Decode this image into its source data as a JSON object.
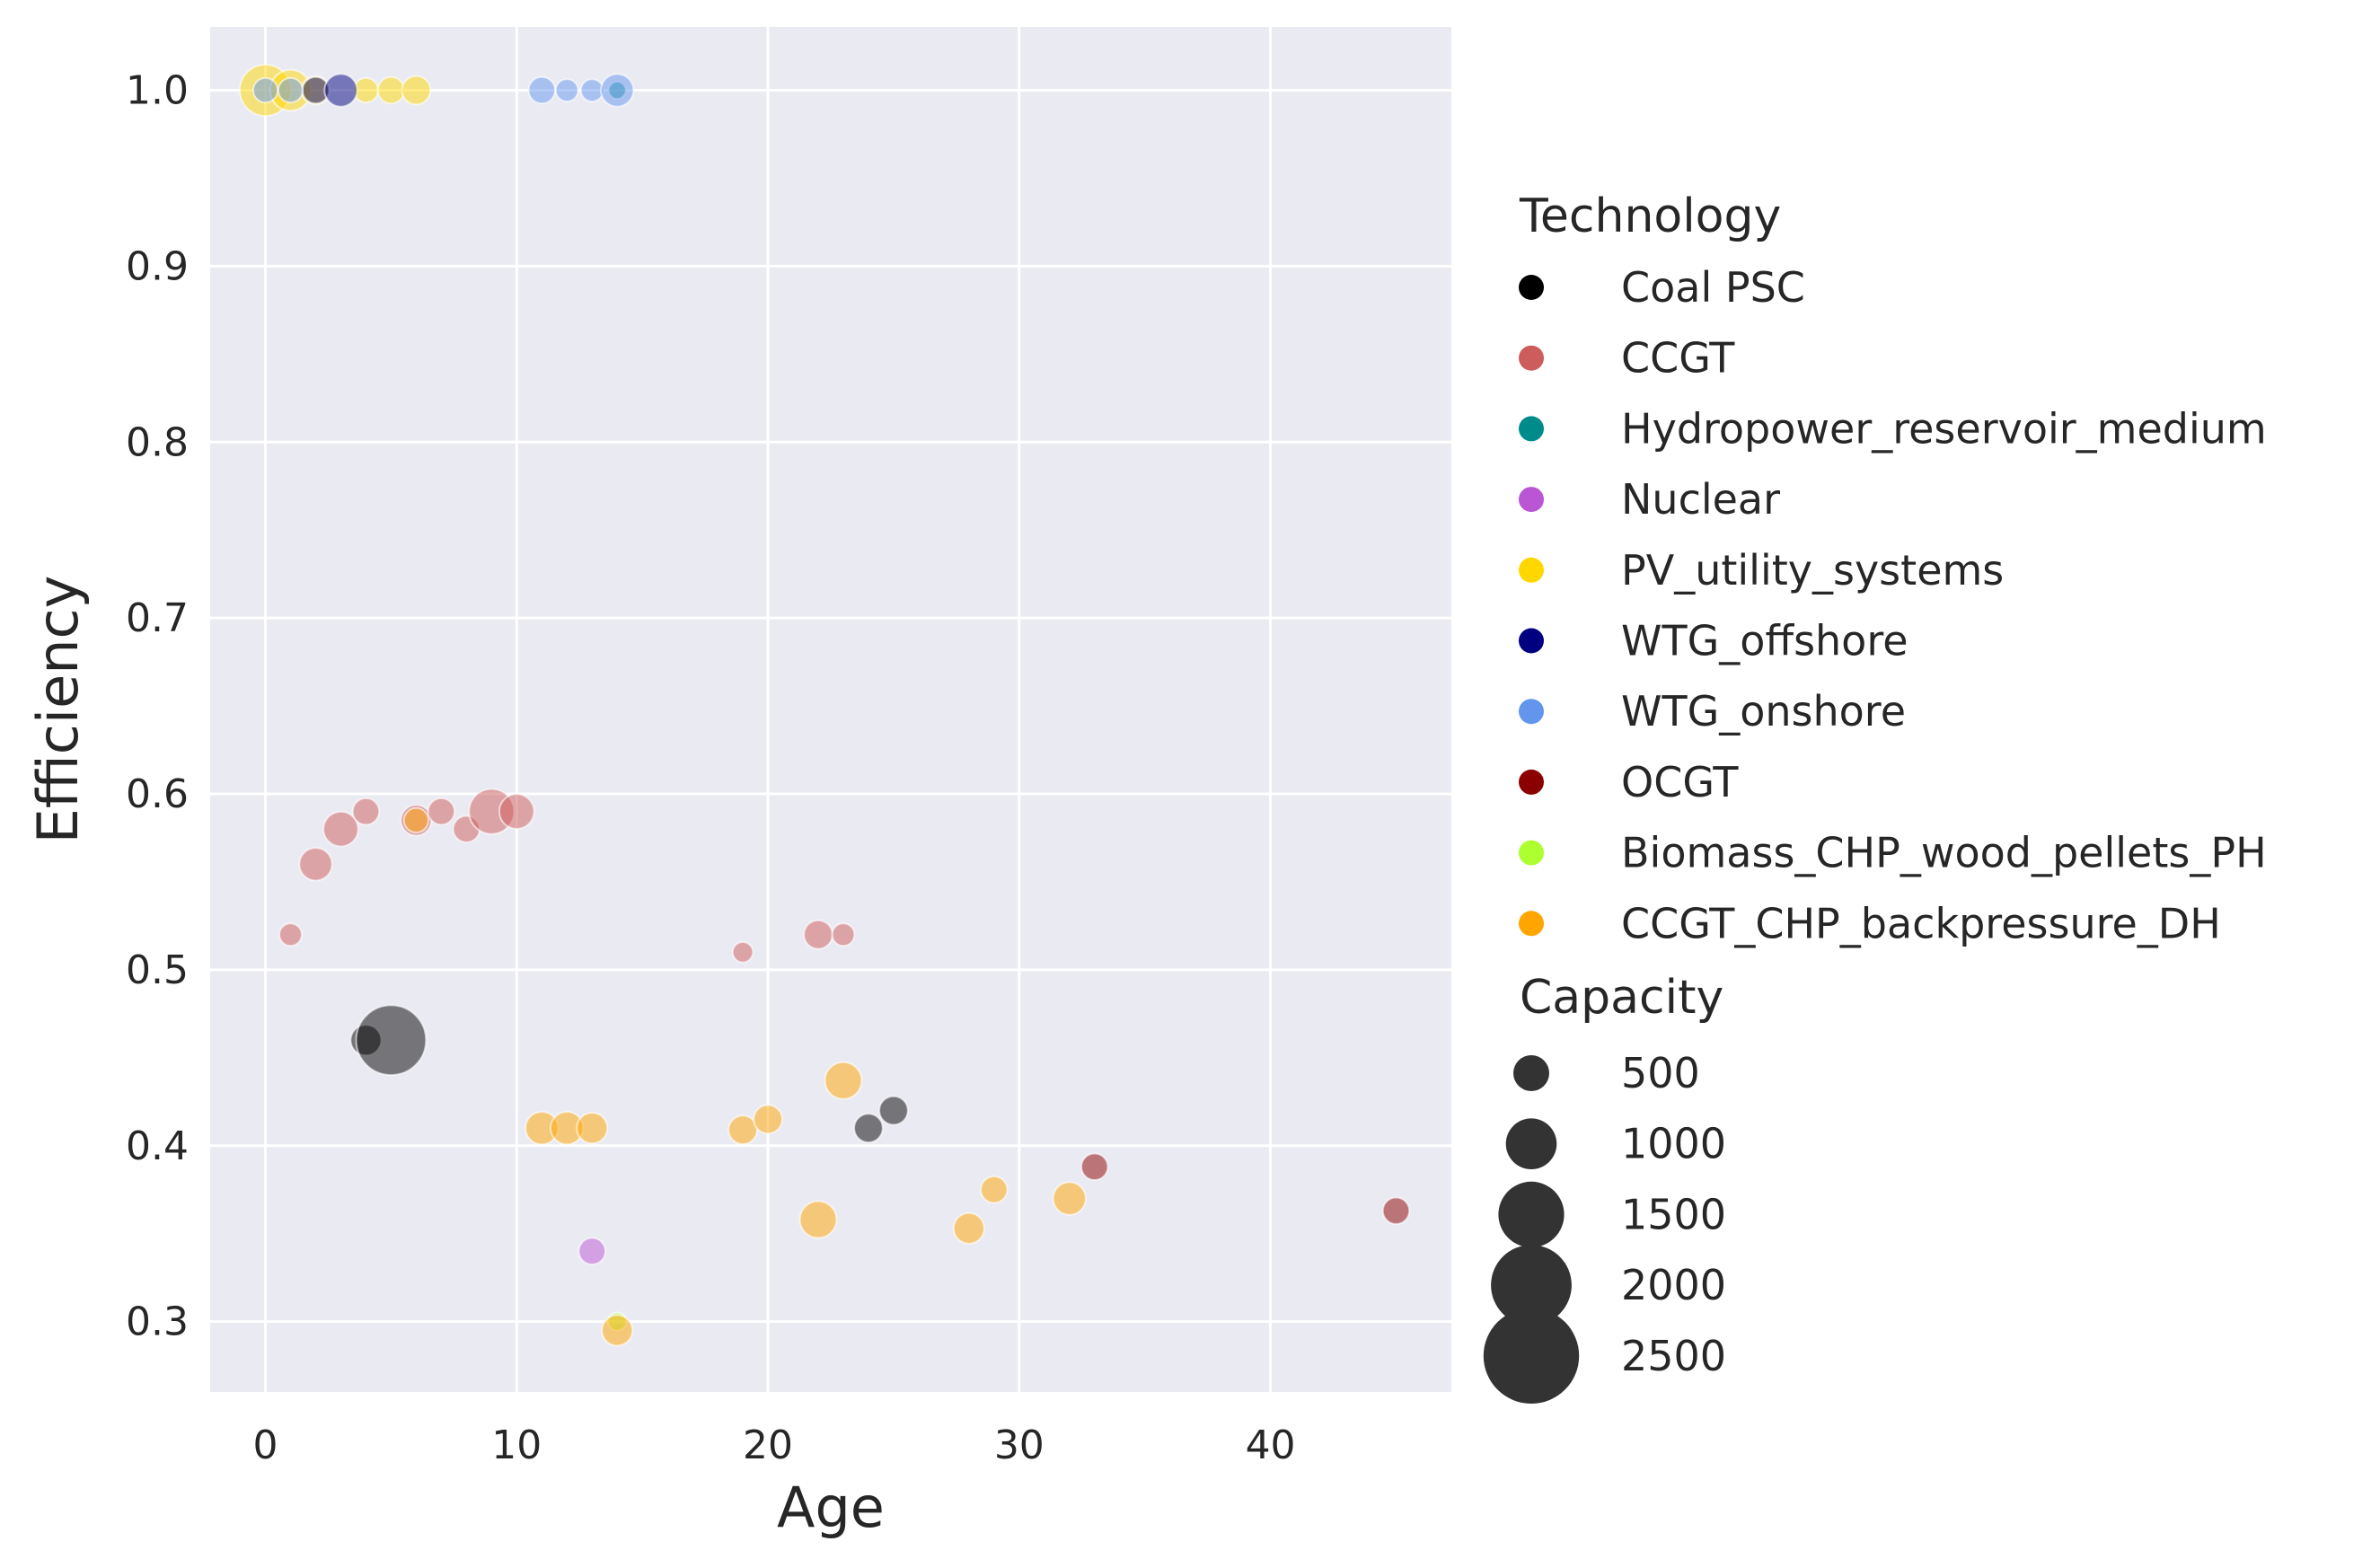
{
  "chart_data": {
    "type": "scatter",
    "title": "",
    "xlabel": "Age",
    "ylabel": "Efficiency",
    "xlim": [
      -2.2,
      47.2
    ],
    "ylim": [
      0.26,
      1.036
    ],
    "xticks": [
      0,
      10,
      20,
      30,
      40
    ],
    "yticks": [
      0.3,
      0.4,
      0.5,
      0.6,
      0.7,
      0.8,
      0.9,
      1.0
    ],
    "grid": true,
    "background": "#eaeaf2",
    "marker_alpha": 0.5,
    "legend": {
      "placement": "outside-right",
      "hue_title": "Technology",
      "size_title": "Capacity",
      "size_levels": [
        500,
        1000,
        1500,
        2000,
        2500
      ],
      "size_marker_color": "#333333"
    },
    "series": [
      {
        "name": "Coal PSC",
        "color": "#000000",
        "points": [
          [
            4,
            0.46,
            700
          ],
          [
            5,
            0.46,
            2600
          ],
          [
            24,
            0.41,
            600
          ],
          [
            25,
            0.42,
            600
          ]
        ]
      },
      {
        "name": "CCGT",
        "color": "#cd5c5c",
        "points": [
          [
            1,
            0.52,
            300
          ],
          [
            2,
            0.56,
            800
          ],
          [
            3,
            0.58,
            900
          ],
          [
            4,
            0.59,
            500
          ],
          [
            6,
            0.585,
            700
          ],
          [
            7,
            0.59,
            500
          ],
          [
            8,
            0.58,
            500
          ],
          [
            9,
            0.59,
            1400
          ],
          [
            10,
            0.59,
            900
          ],
          [
            19,
            0.51,
            200
          ],
          [
            22,
            0.52,
            600
          ],
          [
            23,
            0.52,
            300
          ]
        ]
      },
      {
        "name": "Hydropower_reservoir_medium",
        "color": "#008b8b",
        "points": [
          [
            14,
            1.0,
            50
          ]
        ]
      },
      {
        "name": "Nuclear",
        "color": "#ba55d3",
        "points": [
          [
            13,
            0.34,
            500
          ]
        ]
      },
      {
        "name": "PV_utility_systems",
        "color": "#ffd700",
        "points": [
          [
            0,
            1.0,
            1700
          ],
          [
            1,
            1.0,
            1200
          ],
          [
            2,
            1.0,
            600
          ],
          [
            4,
            1.0,
            400
          ],
          [
            5,
            1.0,
            500
          ],
          [
            6,
            1.0,
            600
          ]
        ]
      },
      {
        "name": "WTG_offshore",
        "color": "#000080",
        "points": [
          [
            2,
            1.0,
            500
          ],
          [
            3,
            1.0,
            800
          ]
        ]
      },
      {
        "name": "WTG_onshore",
        "color": "#6495ed",
        "points": [
          [
            0,
            1.0,
            400
          ],
          [
            1,
            1.0,
            400
          ],
          [
            11,
            1.0,
            500
          ],
          [
            12,
            1.0,
            300
          ],
          [
            13,
            1.0,
            300
          ],
          [
            14,
            1.0,
            800
          ]
        ]
      },
      {
        "name": "OCGT",
        "color": "#8b0000",
        "points": [
          [
            33,
            0.388,
            500
          ],
          [
            45,
            0.363,
            500
          ]
        ]
      },
      {
        "name": "Biomass_CHP_wood_pellets_PH",
        "color": "#adff2f",
        "points": [
          [
            14,
            0.3,
            100
          ]
        ]
      },
      {
        "name": "CCGT_CHP_backpressure_DH",
        "color": "#ffa500",
        "points": [
          [
            6,
            0.585,
            400
          ],
          [
            11,
            0.41,
            800
          ],
          [
            12,
            0.41,
            800
          ],
          [
            13,
            0.41,
            700
          ],
          [
            14,
            0.295,
            700
          ],
          [
            19,
            0.409,
            600
          ],
          [
            20,
            0.415,
            600
          ],
          [
            22,
            0.358,
            1000
          ],
          [
            23,
            0.437,
            1000
          ],
          [
            28,
            0.353,
            700
          ],
          [
            29,
            0.375,
            500
          ],
          [
            32,
            0.37,
            800
          ]
        ]
      }
    ]
  }
}
